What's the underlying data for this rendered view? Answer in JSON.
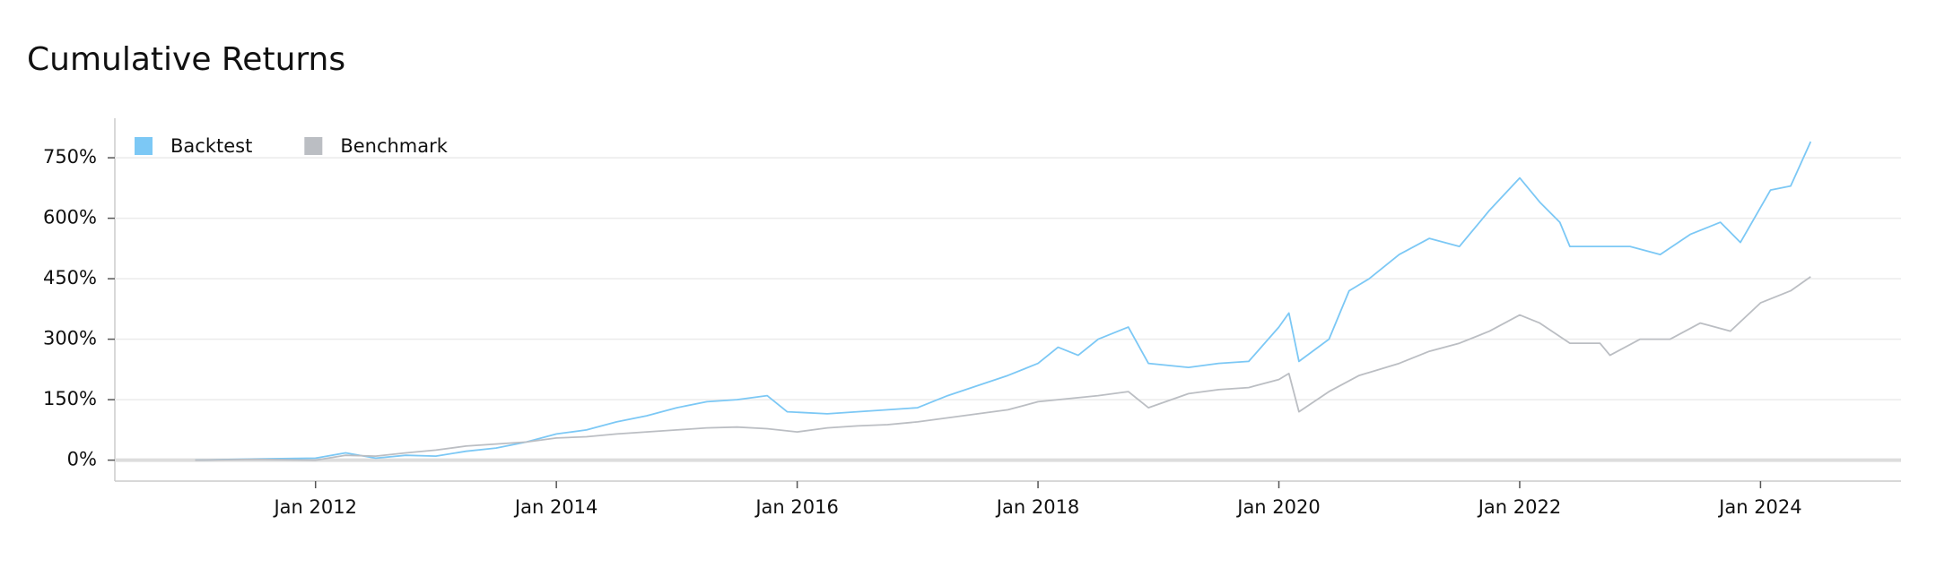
{
  "chart_data": {
    "type": "line",
    "title": "Cumulative Returns",
    "xlim": [
      "2010-05",
      "2025-03"
    ],
    "xticks": [
      {
        "value": "2012-01",
        "label": "Jan 2012"
      },
      {
        "value": "2014-01",
        "label": "Jan 2014"
      },
      {
        "value": "2016-01",
        "label": "Jan 2016"
      },
      {
        "value": "2018-01",
        "label": "Jan 2018"
      },
      {
        "value": "2020-01",
        "label": "Jan 2020"
      },
      {
        "value": "2022-01",
        "label": "Jan 2022"
      },
      {
        "value": "2024-01",
        "label": "Jan 2024"
      }
    ],
    "ylim": [
      -52,
      848
    ],
    "yticks": [
      {
        "value": 0,
        "label": "0%"
      },
      {
        "value": 150,
        "label": "150%"
      },
      {
        "value": 300,
        "label": "300%"
      },
      {
        "value": 450,
        "label": "450%"
      },
      {
        "value": 600,
        "label": "600%"
      },
      {
        "value": 750,
        "label": "750%"
      }
    ],
    "grid": true,
    "legend": "top-left",
    "series": [
      {
        "name": "Backtest",
        "color": "#7cc8f5",
        "x": [
          "2011-01",
          "2011-07",
          "2012-01",
          "2012-04",
          "2012-07",
          "2012-10",
          "2013-01",
          "2013-04",
          "2013-07",
          "2013-10",
          "2014-01",
          "2014-04",
          "2014-07",
          "2014-10",
          "2015-01",
          "2015-04",
          "2015-07",
          "2015-10",
          "2015-12",
          "2016-04",
          "2016-07",
          "2016-10",
          "2017-01",
          "2017-04",
          "2017-07",
          "2017-10",
          "2018-01",
          "2018-03",
          "2018-05",
          "2018-07",
          "2018-10",
          "2018-12",
          "2019-04",
          "2019-07",
          "2019-10",
          "2020-01",
          "2020-02",
          "2020-03",
          "2020-06",
          "2020-08",
          "2020-10",
          "2021-01",
          "2021-04",
          "2021-07",
          "2021-10",
          "2022-01",
          "2022-03",
          "2022-05",
          "2022-06",
          "2022-12",
          "2023-03",
          "2023-06",
          "2023-09",
          "2023-11",
          "2024-02",
          "2024-04",
          "2024-06"
        ],
        "values": [
          0,
          3,
          5,
          18,
          5,
          12,
          10,
          22,
          30,
          45,
          65,
          75,
          95,
          110,
          130,
          145,
          150,
          160,
          120,
          115,
          120,
          125,
          130,
          160,
          185,
          210,
          240,
          280,
          260,
          300,
          330,
          240,
          230,
          240,
          245,
          330,
          365,
          245,
          300,
          420,
          450,
          510,
          550,
          530,
          620,
          700,
          640,
          590,
          530,
          530,
          510,
          560,
          590,
          540,
          670,
          680,
          790
        ]
      },
      {
        "name": "Benchmark",
        "color": "#bbbec3",
        "x": [
          "2011-01",
          "2011-07",
          "2012-01",
          "2012-04",
          "2012-07",
          "2012-10",
          "2013-01",
          "2013-04",
          "2013-07",
          "2013-10",
          "2014-01",
          "2014-04",
          "2014-07",
          "2014-10",
          "2015-01",
          "2015-04",
          "2015-07",
          "2015-10",
          "2016-01",
          "2016-04",
          "2016-07",
          "2016-10",
          "2017-01",
          "2017-04",
          "2017-07",
          "2017-10",
          "2018-01",
          "2018-03",
          "2018-07",
          "2018-10",
          "2018-12",
          "2019-04",
          "2019-07",
          "2019-10",
          "2020-01",
          "2020-02",
          "2020-03",
          "2020-06",
          "2020-09",
          "2021-01",
          "2021-04",
          "2021-07",
          "2021-10",
          "2022-01",
          "2022-03",
          "2022-06",
          "2022-09",
          "2022-10",
          "2023-01",
          "2023-04",
          "2023-07",
          "2023-10",
          "2024-01",
          "2024-04",
          "2024-06"
        ],
        "values": [
          0,
          2,
          0,
          12,
          10,
          18,
          25,
          35,
          40,
          45,
          55,
          58,
          65,
          70,
          75,
          80,
          82,
          78,
          70,
          80,
          85,
          88,
          95,
          105,
          115,
          125,
          145,
          150,
          160,
          170,
          130,
          165,
          175,
          180,
          200,
          215,
          120,
          170,
          210,
          240,
          270,
          290,
          320,
          360,
          340,
          290,
          290,
          260,
          300,
          300,
          340,
          320,
          390,
          420,
          455
        ]
      }
    ]
  }
}
